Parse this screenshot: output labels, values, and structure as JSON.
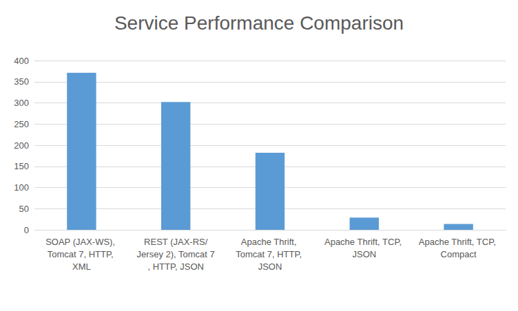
{
  "chart_data": {
    "type": "bar",
    "title": "Service Performance Comparison",
    "categories": [
      "SOAP (JAX-WS), Tomcat 7, HTTP, XML",
      "REST (JAX-RS/Jersey 2), Tomcat 7, HTTP, JSON",
      "Apache Thrift, Tomcat 7, HTTP, JSON",
      "Apache Thrift, TCP, JSON",
      "Apache Thrift, TCP, Compact"
    ],
    "values": [
      371,
      302,
      182,
      29,
      14
    ],
    "color": "#5b9bd5",
    "ylim": [
      0,
      400
    ],
    "yticks": [
      0,
      50,
      100,
      150,
      200,
      250,
      300,
      350,
      400
    ],
    "grid": true
  }
}
